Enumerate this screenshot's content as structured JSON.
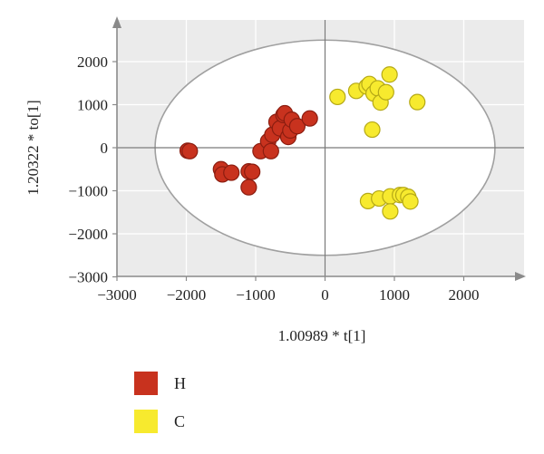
{
  "chart_data": {
    "type": "scatter",
    "xlabel": "1.00989 * t[1]",
    "ylabel": "1.20322 * to[1]",
    "xlim": [
      -3000,
      3000
    ],
    "ylim": [
      -3000,
      2500
    ],
    "x_ticks": [
      -3000,
      -2000,
      -1000,
      0,
      1000,
      2000
    ],
    "y_ticks": [
      -3000,
      -2000,
      -1000,
      0,
      1000,
      2000
    ],
    "x_tick_labels": [
      "−3000",
      "−2000",
      "−1000",
      "0",
      "1000",
      "2000"
    ],
    "y_tick_labels": [
      "−3000",
      "−2000",
      "−1000",
      "0",
      "1000",
      "2000"
    ],
    "grid": true,
    "confidence_ellipse": {
      "center": [
        0,
        0
      ],
      "rx": 2450,
      "ry": 2500
    },
    "legend_position": "bottom-left",
    "series": [
      {
        "name": "H",
        "color": "#c8321e",
        "edge": "#8b1d10",
        "points": [
          [
            -1980,
            -70
          ],
          [
            -1950,
            -80
          ],
          [
            -1500,
            -500
          ],
          [
            -1480,
            -620
          ],
          [
            -1350,
            -580
          ],
          [
            -1100,
            -550
          ],
          [
            -1050,
            -560
          ],
          [
            -1100,
            -920
          ],
          [
            -930,
            -80
          ],
          [
            -820,
            150
          ],
          [
            -780,
            -80
          ],
          [
            -760,
            300
          ],
          [
            -700,
            600
          ],
          [
            -650,
            450
          ],
          [
            -600,
            760
          ],
          [
            -580,
            800
          ],
          [
            -530,
            250
          ],
          [
            -500,
            400
          ],
          [
            -480,
            650
          ],
          [
            -400,
            500
          ],
          [
            -220,
            680
          ]
        ]
      },
      {
        "name": "C",
        "color": "#f7ea2e",
        "edge": "#b5a916",
        "points": [
          [
            180,
            1180
          ],
          [
            450,
            1320
          ],
          [
            600,
            1420
          ],
          [
            640,
            1480
          ],
          [
            700,
            1260
          ],
          [
            760,
            1380
          ],
          [
            800,
            1050
          ],
          [
            880,
            1290
          ],
          [
            930,
            1700
          ],
          [
            680,
            420
          ],
          [
            1330,
            1060
          ],
          [
            620,
            -1240
          ],
          [
            780,
            -1180
          ],
          [
            940,
            -1130
          ],
          [
            940,
            -1480
          ],
          [
            1080,
            -1100
          ],
          [
            1130,
            -1100
          ],
          [
            1200,
            -1140
          ],
          [
            1230,
            -1250
          ]
        ]
      }
    ]
  }
}
